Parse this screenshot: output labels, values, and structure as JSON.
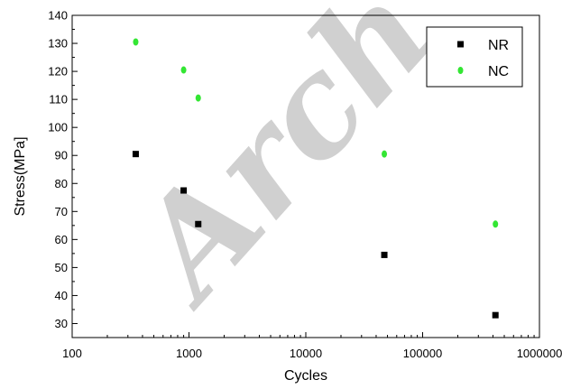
{
  "chart_data": {
    "type": "scatter",
    "xlabel": "Cycles",
    "ylabel": "Stress(MPa]",
    "x_scale": "log",
    "xlim": [
      100,
      1000000
    ],
    "ylim": [
      25,
      140
    ],
    "x_ticks": [
      100,
      1000,
      10000,
      100000,
      1000000
    ],
    "x_tick_labels": [
      "100",
      "1000",
      "10000",
      "100000",
      "1000000"
    ],
    "y_ticks": [
      30,
      40,
      50,
      60,
      70,
      80,
      90,
      100,
      110,
      120,
      130,
      140
    ],
    "y_tick_labels": [
      "30",
      "40",
      "50",
      "60",
      "70",
      "80",
      "90",
      "100",
      "110",
      "120",
      "130",
      "140"
    ],
    "legend_position": "top-right",
    "grid": false,
    "watermark": "Arch",
    "series": [
      {
        "name": "NR",
        "color": "#000000",
        "marker": "square",
        "points": [
          {
            "x": 350,
            "y": 90.5
          },
          {
            "x": 900,
            "y": 77.5
          },
          {
            "x": 1200,
            "y": 65.5
          },
          {
            "x": 47000,
            "y": 54.5
          },
          {
            "x": 420000,
            "y": 33
          }
        ]
      },
      {
        "name": "NC",
        "color": "#33e633",
        "marker": "circle",
        "points": [
          {
            "x": 350,
            "y": 130.5
          },
          {
            "x": 900,
            "y": 120.5
          },
          {
            "x": 1200,
            "y": 110.5
          },
          {
            "x": 47000,
            "y": 90.5
          },
          {
            "x": 420000,
            "y": 65.5
          }
        ]
      }
    ]
  }
}
